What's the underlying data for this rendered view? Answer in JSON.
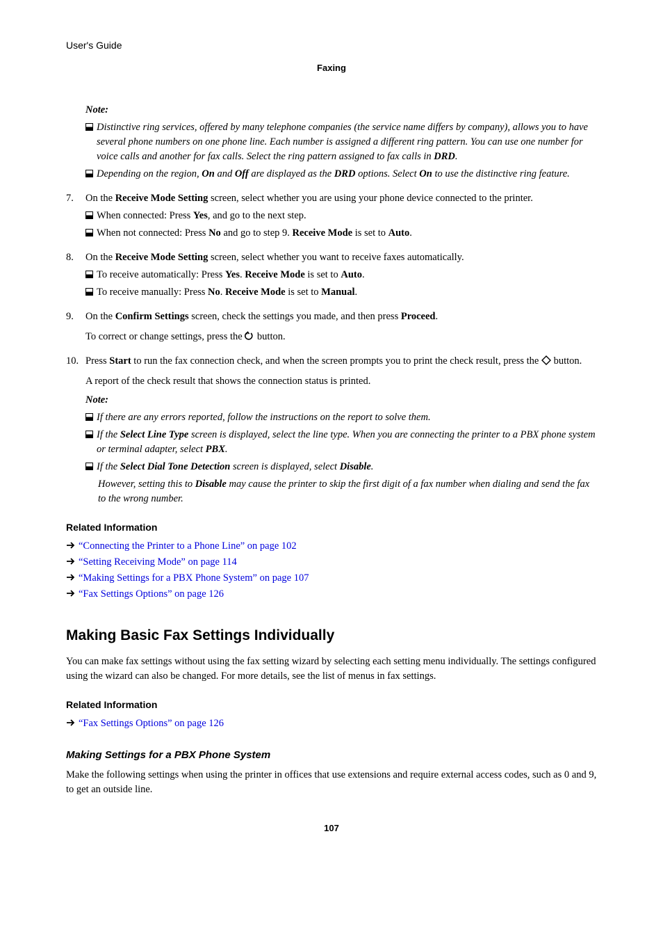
{
  "header": {
    "book_title": "User's Guide",
    "chapter": "Faxing"
  },
  "note1": {
    "label": "Note:",
    "items": [
      "Distinctive ring services, offered by many telephone companies (the service name differs by company), allows you to have several phone numbers on one phone line. Each number is assigned a different ring pattern. You can use one number for voice calls and another for fax calls. Select the ring pattern assigned to fax calls in <b>DRD</b>.",
      "Depending on the region, <b>On</b> and <b>Off</b> are displayed as the <b>DRD</b> options. Select <b>On</b> to use the distinctive ring feature."
    ]
  },
  "step7": {
    "num": "7.",
    "text": "On the <b>Receive Mode Setting</b> screen, select whether you are using your phone device connected to the printer.",
    "bullets": [
      "When connected: Press <b>Yes</b>, and go to the next step.",
      "When not connected: Press <b>No</b> and go to step 9. <b>Receive Mode</b> is set to <b>Auto</b>."
    ]
  },
  "step8": {
    "num": "8.",
    "text": "On the <b>Receive Mode Setting</b> screen, select whether you want to receive faxes automatically.",
    "bullets": [
      "To receive automatically: Press <b>Yes</b>. <b>Receive Mode</b> is set to <b>Auto</b>.",
      "To receive manually: Press <b>No</b>. <b>Receive Mode</b> is set to <b>Manual</b>."
    ]
  },
  "step9": {
    "num": "9.",
    "text": "On the <b>Confirm Settings</b> screen, check the settings you made, and then press <b>Proceed</b>.",
    "sub_prefix": "To correct or change settings, press the ",
    "sub_suffix": " button."
  },
  "step10": {
    "num": "10.",
    "text_prefix": "Press <b>Start</b> to run the fax connection check, and when the screen prompts you to print the check result, press the ",
    "text_suffix": " button.",
    "sub": "A report of the check result that shows the connection status is printed."
  },
  "note2": {
    "label": "Note:",
    "items": [
      "If there are any errors reported, follow the instructions on the report to solve them.",
      "If the <b>Select Line Type</b> screen is displayed, select the line type. When you are connecting the printer to a PBX phone system or terminal adapter, select <b>PBX</b>.",
      "If the <b>Select Dial Tone Detection</b> screen is displayed, select <b>Disable</b>."
    ],
    "nested": "However, setting this to <b>Disable</b> may cause the printer to skip the first digit of a fax number when dialing and send the fax to the wrong number."
  },
  "related1": {
    "heading": "Related Information",
    "links": [
      "“Connecting the Printer to a Phone Line” on page 102",
      "“Setting Receiving Mode” on page 114",
      "“Making Settings for a PBX Phone System” on page 107",
      "“Fax Settings Options” on page 126"
    ]
  },
  "section2": {
    "heading": "Making Basic Fax Settings Individually",
    "para": "You can make fax settings without using the fax setting wizard by selecting each setting menu individually. The settings configured using the wizard can also be changed. For more details, see the list of menus in fax settings."
  },
  "related2": {
    "heading": "Related Information",
    "links": [
      "“Fax Settings Options” on page 126"
    ]
  },
  "section3": {
    "heading": "Making Settings for a PBX Phone System",
    "para": "Make the following settings when using the printer in offices that use extensions and require external access codes, such as 0 and 9, to get an outside line."
  },
  "page_number": "107",
  "colors": {
    "link": "#0000dd",
    "text": "#000000",
    "background": "#ffffff"
  },
  "fonts": {
    "body": "Minion Pro / serif",
    "body_size_pt": 11,
    "heading": "Myriad Pro / sans-serif",
    "h2_size_pt": 16,
    "h3_size_pt": 11.5
  }
}
